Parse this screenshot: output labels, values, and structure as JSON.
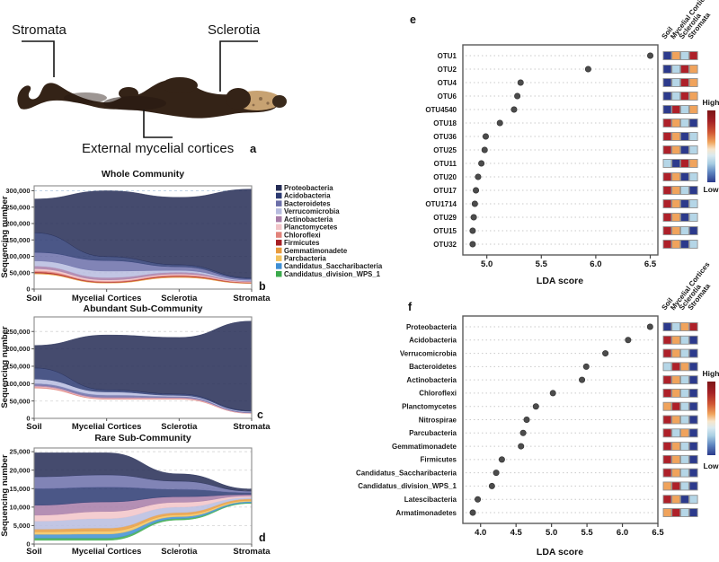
{
  "panel_a": {
    "letter": "a",
    "labels": {
      "stromata": "Stromata",
      "sclerotia": "Sclerotia",
      "cortices": "External mycelial cortices"
    }
  },
  "legend": {
    "items": [
      {
        "label": "Proteobacteria",
        "color": "#242c55"
      },
      {
        "label": "Acidobacteria",
        "color": "#2c3a72"
      },
      {
        "label": "Bacteroidetes",
        "color": "#6b6fa9"
      },
      {
        "label": "Verrucomicrobia",
        "color": "#b7bcdf"
      },
      {
        "label": "Actinobacteria",
        "color": "#a77ba7"
      },
      {
        "label": "Planctomycetes",
        "color": "#f2c4c8"
      },
      {
        "label": "Chloroflexi",
        "color": "#e2837b"
      },
      {
        "label": "Firmicutes",
        "color": "#a61e24"
      },
      {
        "label": "Gemmatimonadete",
        "color": "#e89b3d"
      },
      {
        "label": "Parcbacteria",
        "color": "#f3c35e"
      },
      {
        "label": "Candidatus_Saccharibacteria",
        "color": "#3f8fd4"
      },
      {
        "label": "Candidatus_division_WPS_1",
        "color": "#3baa4c"
      }
    ]
  },
  "heat_colors": {
    "red": "#ae2029",
    "orange": "#f0a35c",
    "lightblue": "#b5d6e7",
    "navy": "#2c3a8c"
  },
  "chart_data": [
    {
      "id": "b",
      "type": "area",
      "letter": "b",
      "title": "Whole Community",
      "ylabel": "Sequencing number",
      "categories": [
        "Soil",
        "Mycelial Cortices",
        "Sclerotia",
        "Stromata"
      ],
      "ylim": [
        0,
        315000
      ],
      "yticks": [
        0,
        50000,
        100000,
        150000,
        200000,
        250000,
        300000
      ],
      "baseline": [
        46000,
        18000,
        35000,
        17000
      ],
      "series": [
        {
          "name": "Gemmatimonadete",
          "color": "#e89b3d",
          "values": [
            3000,
            2000,
            3000,
            1500
          ]
        },
        {
          "name": "Firmicutes",
          "color": "#a61e24",
          "values": [
            3000,
            1500,
            2000,
            1000
          ]
        },
        {
          "name": "Chloroflexi",
          "color": "#e2837b",
          "values": [
            4000,
            2500,
            3000,
            1500
          ]
        },
        {
          "name": "Planctomycetes",
          "color": "#f2c4c8",
          "values": [
            6000,
            4000,
            3000,
            1500
          ]
        },
        {
          "name": "Actinobacteria",
          "color": "#a77ba7",
          "values": [
            8000,
            7000,
            5000,
            2000
          ]
        },
        {
          "name": "Verrucomicrobia",
          "color": "#b7bcdf",
          "values": [
            16000,
            20000,
            6000,
            2500
          ]
        },
        {
          "name": "Bacteroidetes",
          "color": "#6b6fa9",
          "values": [
            26000,
            32000,
            11000,
            4000
          ]
        },
        {
          "name": "Acidobacteria",
          "color": "#2c3a72",
          "values": [
            60000,
            12000,
            6000,
            3000
          ]
        },
        {
          "name": "Proteobacteria",
          "color": "#242c55",
          "values": [
            103000,
            201000,
            206000,
            271000
          ]
        }
      ]
    },
    {
      "id": "c",
      "type": "area",
      "letter": "c",
      "title": "Abundant Sub-Community",
      "ylabel": "Sequencing number",
      "categories": [
        "Soil",
        "Mycelial Cortices",
        "Sclerotia",
        "Stromata"
      ],
      "ylim": [
        0,
        292000
      ],
      "yticks": [
        0,
        50000,
        100000,
        150000,
        200000,
        250000
      ],
      "baseline": [
        87000,
        55000,
        55000,
        14000
      ],
      "series": [
        {
          "name": "Chloroflexi",
          "color": "#e2837b",
          "values": [
            3000,
            2000,
            2000,
            800
          ]
        },
        {
          "name": "Planctomycetes",
          "color": "#f2c4c8",
          "values": [
            2000,
            1500,
            1500,
            700
          ]
        },
        {
          "name": "Actinobacteria",
          "color": "#a77ba7",
          "values": [
            3000,
            2500,
            1500,
            800
          ]
        },
        {
          "name": "Bacteroidetes",
          "color": "#6b6fa9",
          "values": [
            5000,
            6000,
            3000,
            1700
          ]
        },
        {
          "name": "Verrucomicrobia",
          "color": "#b7bcdf",
          "values": [
            13000,
            9000,
            3000,
            2000
          ]
        },
        {
          "name": "Acidobacteria",
          "color": "#2c3a72",
          "values": [
            32000,
            6000,
            4000,
            2000
          ]
        },
        {
          "name": "Proteobacteria",
          "color": "#242c55",
          "values": [
            65000,
            158000,
            163000,
            258000
          ]
        }
      ]
    },
    {
      "id": "d",
      "type": "area",
      "letter": "d",
      "title": "Rare Sub-Community",
      "ylabel": "Sequencing number",
      "categories": [
        "Soil",
        "Mycelial Cortices",
        "Sclerotia",
        "Stromata"
      ],
      "ylim": [
        0,
        26000
      ],
      "yticks": [
        0,
        5000,
        10000,
        15000,
        20000,
        25000
      ],
      "baseline": [
        1000,
        1000,
        6500,
        11000
      ],
      "series": [
        {
          "name": "Candidatus_division_WPS_1",
          "color": "#3baa4c",
          "values": [
            600,
            600,
            400,
            200
          ]
        },
        {
          "name": "Candidatus_Saccharibacteria",
          "color": "#3f8fd4",
          "values": [
            1000,
            1100,
            500,
            300
          ]
        },
        {
          "name": "Parcbacteria",
          "color": "#f3c35e",
          "values": [
            700,
            800,
            500,
            300
          ]
        },
        {
          "name": "Gemmatimonadete",
          "color": "#e89b3d",
          "values": [
            700,
            800,
            600,
            400
          ]
        },
        {
          "name": "Verrucomicrobia",
          "color": "#b7bcdf",
          "values": [
            2200,
            2600,
            1500,
            400
          ]
        },
        {
          "name": "Planctomycetes",
          "color": "#f2c4c8",
          "values": [
            1600,
            1900,
            1300,
            400
          ]
        },
        {
          "name": "Actinobacteria",
          "color": "#a77ba7",
          "values": [
            2700,
            2600,
            1500,
            400
          ]
        },
        {
          "name": "Acidobacteria",
          "color": "#2c3a72",
          "values": [
            4500,
            4000,
            2000,
            500
          ]
        },
        {
          "name": "Bacteroidetes",
          "color": "#6b6fa9",
          "values": [
            3200,
            3300,
            2200,
            400
          ]
        },
        {
          "name": "Proteobacteria",
          "color": "#242c55",
          "values": [
            6500,
            6000,
            2000,
            600
          ]
        }
      ]
    },
    {
      "id": "e",
      "type": "scatter",
      "letter": "e",
      "xlabel": "LDA score",
      "xlim": [
        4.78,
        6.57
      ],
      "xticks": [
        5.0,
        5.5,
        6.0,
        6.5
      ],
      "heat_columns": [
        "Soil",
        "Mycelial Cortices",
        "Sclerotia",
        "Stromata"
      ],
      "colorbar": {
        "high": "High",
        "low": "Low"
      },
      "rows": [
        {
          "label": "OTU1",
          "value": 6.5,
          "heat": [
            "navy",
            "orange",
            "lightblue",
            "red"
          ]
        },
        {
          "label": "OTU2",
          "value": 5.93,
          "heat": [
            "navy",
            "lightblue",
            "red",
            "orange"
          ]
        },
        {
          "label": "OTU4",
          "value": 5.31,
          "heat": [
            "navy",
            "lightblue",
            "red",
            "orange"
          ]
        },
        {
          "label": "OTU6",
          "value": 5.28,
          "heat": [
            "navy",
            "lightblue",
            "red",
            "orange"
          ]
        },
        {
          "label": "OTU4540",
          "value": 5.25,
          "heat": [
            "navy",
            "red",
            "lightblue",
            "orange"
          ]
        },
        {
          "label": "OTU18",
          "value": 5.12,
          "heat": [
            "red",
            "orange",
            "lightblue",
            "navy"
          ]
        },
        {
          "label": "OTU36",
          "value": 4.99,
          "heat": [
            "red",
            "orange",
            "navy",
            "lightblue"
          ]
        },
        {
          "label": "OTU25",
          "value": 4.98,
          "heat": [
            "red",
            "orange",
            "navy",
            "lightblue"
          ]
        },
        {
          "label": "OTU11",
          "value": 4.95,
          "heat": [
            "lightblue",
            "navy",
            "red",
            "orange"
          ]
        },
        {
          "label": "OTU20",
          "value": 4.92,
          "heat": [
            "red",
            "orange",
            "navy",
            "lightblue"
          ]
        },
        {
          "label": "OTU17",
          "value": 4.9,
          "heat": [
            "red",
            "orange",
            "lightblue",
            "navy"
          ]
        },
        {
          "label": "OTU1714",
          "value": 4.89,
          "heat": [
            "red",
            "orange",
            "navy",
            "lightblue"
          ]
        },
        {
          "label": "OTU29",
          "value": 4.88,
          "heat": [
            "red",
            "orange",
            "navy",
            "lightblue"
          ]
        },
        {
          "label": "OTU15",
          "value": 4.87,
          "heat": [
            "red",
            "orange",
            "lightblue",
            "navy"
          ]
        },
        {
          "label": "OTU32",
          "value": 4.87,
          "heat": [
            "red",
            "orange",
            "navy",
            "lightblue"
          ]
        }
      ]
    },
    {
      "id": "f",
      "type": "scatter",
      "letter": "f",
      "xlabel": "LDA score",
      "xlim": [
        3.75,
        6.5
      ],
      "xticks": [
        4.0,
        4.5,
        5.0,
        5.5,
        6.0,
        6.5
      ],
      "heat_columns": [
        "Soil",
        "Mycelial Cortices",
        "Sclerotia",
        "Stromata"
      ],
      "colorbar": {
        "high": "High",
        "low": "Low"
      },
      "rows": [
        {
          "label": "Proteobacteria",
          "value": 6.39,
          "heat": [
            "navy",
            "lightblue",
            "orange",
            "red"
          ]
        },
        {
          "label": "Acidobacteria",
          "value": 6.08,
          "heat": [
            "red",
            "orange",
            "lightblue",
            "navy"
          ]
        },
        {
          "label": "Verrucomicrobia",
          "value": 5.76,
          "heat": [
            "red",
            "orange",
            "lightblue",
            "navy"
          ]
        },
        {
          "label": "Bacteroidetes",
          "value": 5.49,
          "heat": [
            "lightblue",
            "red",
            "orange",
            "navy"
          ]
        },
        {
          "label": "Actinobacteria",
          "value": 5.43,
          "heat": [
            "red",
            "orange",
            "lightblue",
            "navy"
          ]
        },
        {
          "label": "Chloroflexi",
          "value": 5.02,
          "heat": [
            "red",
            "orange",
            "lightblue",
            "navy"
          ]
        },
        {
          "label": "Planctomycetes",
          "value": 4.78,
          "heat": [
            "orange",
            "red",
            "lightblue",
            "navy"
          ]
        },
        {
          "label": "Nitrospirae",
          "value": 4.65,
          "heat": [
            "red",
            "orange",
            "lightblue",
            "navy"
          ]
        },
        {
          "label": "Parcubacteria",
          "value": 4.6,
          "heat": [
            "red",
            "lightblue",
            "orange",
            "navy"
          ]
        },
        {
          "label": "Gemmatimonadete",
          "value": 4.57,
          "heat": [
            "red",
            "orange",
            "lightblue",
            "navy"
          ]
        },
        {
          "label": "Firmicutes",
          "value": 4.3,
          "heat": [
            "red",
            "orange",
            "lightblue",
            "navy"
          ]
        },
        {
          "label": "Candidatus_Saccharibacteria",
          "value": 4.22,
          "heat": [
            "red",
            "orange",
            "lightblue",
            "navy"
          ]
        },
        {
          "label": "Candidatus_division_WPS_1",
          "value": 4.16,
          "heat": [
            "orange",
            "red",
            "lightblue",
            "navy"
          ]
        },
        {
          "label": "Latescibacteria",
          "value": 3.96,
          "heat": [
            "red",
            "orange",
            "navy",
            "lightblue"
          ]
        },
        {
          "label": "Armatimonadetes",
          "value": 3.89,
          "heat": [
            "orange",
            "red",
            "lightblue",
            "navy"
          ]
        }
      ]
    }
  ]
}
